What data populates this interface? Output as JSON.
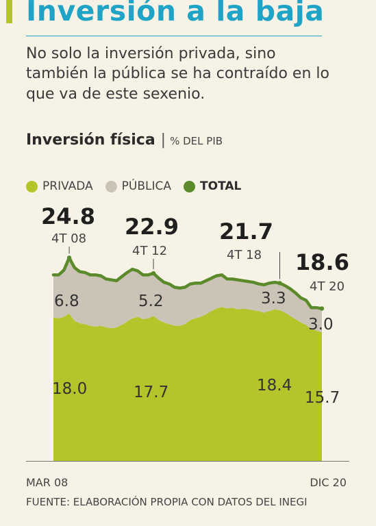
{
  "header": {
    "title": "Inversión a la baja",
    "subtitle": "No solo la inversión privada, sino también la pública se ha contraído en lo que va de este sexenio."
  },
  "chart_header": {
    "title": "Inversión física",
    "separator": "|",
    "unit": "% DEL PIB"
  },
  "legend": [
    {
      "label": "PRIVADA",
      "color": "#b6c42c"
    },
    {
      "label": "PÚBLICA",
      "color": "#ccc3b7"
    },
    {
      "label": "TOTAL",
      "color": "#5a8a2a"
    }
  ],
  "source": "FUENTE: ELABORACIÓN PROPIA CON DATOS DEL INEGI",
  "colors": {
    "privada": "#b6c42c",
    "publica": "#ccc3b7",
    "total": "#5a8a2a",
    "accent": "#1fa3c6",
    "background": "#f6f2e6"
  },
  "chart_data": {
    "type": "area",
    "x": [
      "1T 08",
      "2T 08",
      "3T 08",
      "4T 08",
      "1T 09",
      "2T 09",
      "3T 09",
      "4T 09",
      "1T 10",
      "2T 10",
      "3T 10",
      "4T 10",
      "1T 11",
      "2T 11",
      "3T 11",
      "4T 11",
      "1T 12",
      "2T 12",
      "3T 12",
      "4T 12",
      "1T 13",
      "2T 13",
      "3T 13",
      "4T 13",
      "1T 14",
      "2T 14",
      "3T 14",
      "4T 14",
      "1T 15",
      "2T 15",
      "3T 15",
      "4T 15",
      "1T 16",
      "2T 16",
      "3T 16",
      "4T 16",
      "1T 17",
      "2T 17",
      "3T 17",
      "4T 17",
      "1T 18",
      "2T 18",
      "3T 18",
      "4T 18",
      "1T 19",
      "2T 19",
      "3T 19",
      "4T 19",
      "1T 20",
      "2T 20",
      "3T 20",
      "4T 20"
    ],
    "x_tick_labels": {
      "start": "MAR 08",
      "end": "DIC 20"
    },
    "ylim": [
      0,
      27
    ],
    "series": [
      {
        "name": "PRIVADA",
        "stack": true,
        "values": [
          17.5,
          17.4,
          17.6,
          18.0,
          17.1,
          16.8,
          16.7,
          16.5,
          16.4,
          16.5,
          16.3,
          16.2,
          16.3,
          16.6,
          17.0,
          17.4,
          17.6,
          17.3,
          17.4,
          17.7,
          17.2,
          16.9,
          16.7,
          16.5,
          16.5,
          16.7,
          17.2,
          17.4,
          17.6,
          17.9,
          18.3,
          18.6,
          18.8,
          18.6,
          18.7,
          18.5,
          18.6,
          18.5,
          18.4,
          18.3,
          18.1,
          18.3,
          18.5,
          18.4,
          18.1,
          17.7,
          17.3,
          16.9,
          16.6,
          16.1,
          15.9,
          15.7
        ]
      },
      {
        "name": "PÚBLICA",
        "stack": true,
        "values": [
          5.2,
          5.3,
          5.7,
          6.8,
          6.5,
          6.3,
          6.3,
          6.2,
          6.3,
          6.1,
          5.9,
          5.9,
          5.7,
          5.9,
          6.0,
          6.0,
          5.6,
          5.4,
          5.3,
          5.2,
          5.1,
          4.9,
          4.9,
          4.7,
          4.6,
          4.5,
          4.4,
          4.3,
          4.1,
          4.1,
          4.0,
          4.0,
          3.9,
          3.6,
          3.5,
          3.6,
          3.4,
          3.4,
          3.4,
          3.3,
          3.4,
          3.4,
          3.3,
          3.3,
          3.3,
          3.3,
          3.2,
          3.0,
          3.0,
          2.6,
          2.8,
          3.0
        ]
      },
      {
        "name": "TOTAL",
        "values": [
          22.7,
          22.7,
          23.3,
          24.8,
          23.6,
          23.1,
          23.0,
          22.7,
          22.7,
          22.6,
          22.2,
          22.1,
          22.0,
          22.5,
          23.0,
          23.4,
          23.2,
          22.7,
          22.7,
          22.9,
          22.3,
          21.8,
          21.6,
          21.2,
          21.1,
          21.2,
          21.6,
          21.7,
          21.7,
          22.0,
          22.3,
          22.6,
          22.7,
          22.2,
          22.2,
          22.1,
          22.0,
          21.9,
          21.8,
          21.6,
          21.5,
          21.7,
          21.8,
          21.7,
          21.4,
          21.0,
          20.5,
          19.9,
          19.6,
          18.7,
          18.7,
          18.6
        ]
      }
    ],
    "annotations": [
      {
        "series": "TOTAL",
        "index": 3,
        "value_label": "24.8",
        "date_label": "4T 08"
      },
      {
        "series": "TOTAL",
        "index": 19,
        "value_label": "22.9",
        "date_label": "4T 12"
      },
      {
        "series": "TOTAL",
        "index": 43,
        "value_label": "21.7",
        "date_label": "4T 18"
      },
      {
        "series": "TOTAL",
        "index": 51,
        "value_label": "18.6",
        "date_label": "4T 20"
      }
    ],
    "area_labels": [
      {
        "series": "PÚBLICA",
        "index": 3,
        "label": "6.8"
      },
      {
        "series": "PÚBLICA",
        "index": 19,
        "label": "5.2"
      },
      {
        "series": "PÚBLICA",
        "index": 43,
        "label": "3.3"
      },
      {
        "series": "PÚBLICA",
        "index": 51,
        "label": "3.0"
      },
      {
        "series": "PRIVADA",
        "index": 3,
        "label": "18.0"
      },
      {
        "series": "PRIVADA",
        "index": 19,
        "label": "17.7"
      },
      {
        "series": "PRIVADA",
        "index": 43,
        "label": "18.4"
      },
      {
        "series": "PRIVADA",
        "index": 51,
        "label": "15.7"
      }
    ],
    "grid": false,
    "legend_position": "top-left"
  }
}
